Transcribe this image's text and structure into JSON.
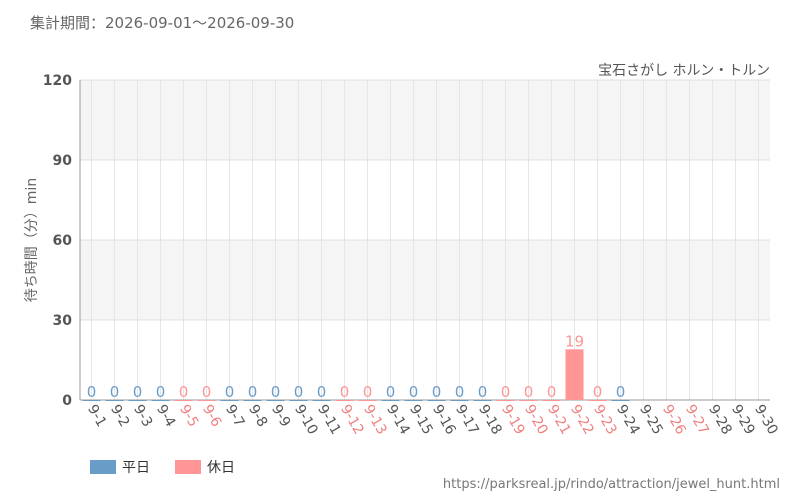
{
  "chart_data": {
    "type": "bar",
    "header": "集計期間：2026-09-01〜2026-09-30",
    "title": "宝石さがし ホルン・トルン",
    "y_label": "待ち時間（分）min",
    "source": "https://parksreal.jp/rindo/attraction/jewel_hunt.html",
    "categories": [
      "9-1",
      "9-2",
      "9-3",
      "9-4",
      "9-5",
      "9-6",
      "9-7",
      "9-8",
      "9-9",
      "9-10",
      "9-11",
      "9-12",
      "9-13",
      "9-14",
      "9-15",
      "9-16",
      "9-17",
      "9-18",
      "9-19",
      "9-20",
      "9-21",
      "9-22",
      "9-23",
      "9-24",
      "9-25",
      "9-26",
      "9-27",
      "9-28",
      "9-29",
      "9-30"
    ],
    "category_colors": [
      "#555555",
      "#555555",
      "#555555",
      "#555555",
      "#f08080",
      "#f08080",
      "#555555",
      "#555555",
      "#555555",
      "#555555",
      "#555555",
      "#f08080",
      "#f08080",
      "#555555",
      "#555555",
      "#555555",
      "#555555",
      "#555555",
      "#f08080",
      "#f08080",
      "#f08080",
      "#f08080",
      "#f08080",
      "#555555",
      "#555555",
      "#f08080",
      "#f08080",
      "#555555",
      "#555555",
      "#555555"
    ],
    "series": [
      {
        "name": "平日",
        "color": "#6a9cc8",
        "values": [
          0,
          0,
          0,
          0,
          null,
          null,
          0,
          0,
          0,
          0,
          0,
          null,
          null,
          0,
          0,
          0,
          0,
          0,
          null,
          null,
          null,
          null,
          null,
          0,
          null,
          null,
          null,
          null,
          null,
          null
        ]
      },
      {
        "name": "休日",
        "color": "#ff9595",
        "values": [
          null,
          null,
          null,
          null,
          0,
          0,
          null,
          null,
          null,
          null,
          null,
          0,
          0,
          null,
          null,
          null,
          null,
          null,
          0,
          0,
          0,
          19,
          0,
          null,
          null,
          null,
          null,
          null,
          null,
          null
        ]
      }
    ],
    "ylim": [
      0,
      120
    ],
    "yticks": [
      0,
      30,
      60,
      90,
      120
    ],
    "grid": true,
    "legend": "bottom-left"
  }
}
